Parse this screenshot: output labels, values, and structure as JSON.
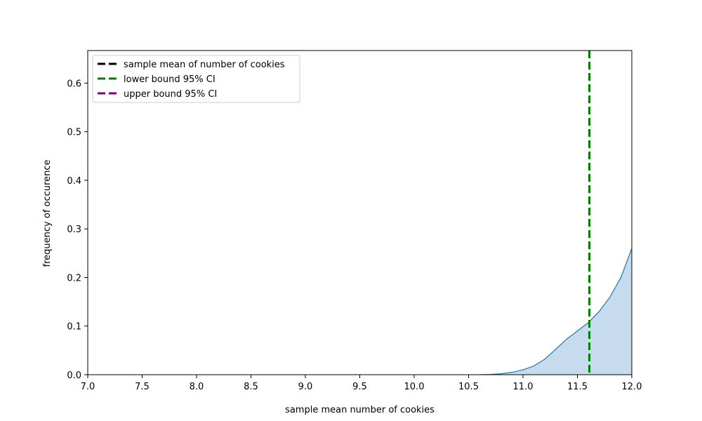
{
  "chart_data": {
    "type": "area",
    "title": "",
    "xlabel": "sample mean number of cookies",
    "ylabel": "frequency of occurence",
    "xlim": [
      7.0,
      12.0
    ],
    "ylim": [
      0.0,
      0.667
    ],
    "x_ticks": [
      "7.0",
      "7.5",
      "8.0",
      "8.5",
      "9.0",
      "9.5",
      "10.0",
      "10.5",
      "11.0",
      "11.5",
      "12.0"
    ],
    "y_ticks": [
      "0.0",
      "0.1",
      "0.2",
      "0.3",
      "0.4",
      "0.5",
      "0.6"
    ],
    "grid": false,
    "legend_position": "top-left",
    "series": [
      {
        "kind": "density",
        "color": "#1f77b4",
        "fill": "#c6dbed",
        "x": [
          10.6,
          10.7,
          10.8,
          10.9,
          11.0,
          11.1,
          11.2,
          11.3,
          11.4,
          11.5,
          11.6,
          11.7,
          11.8,
          11.9,
          12.0
        ],
        "y": [
          0.0,
          0.0005,
          0.002,
          0.005,
          0.01,
          0.018,
          0.032,
          0.052,
          0.073,
          0.09,
          0.107,
          0.13,
          0.16,
          0.2,
          0.26
        ]
      }
    ],
    "vlines": [
      {
        "name": "sample mean of number of cookies",
        "x": null,
        "color": "#000000",
        "style": "dashed"
      },
      {
        "name": "lower bound 95% CI",
        "x": 11.61,
        "color": "#008000",
        "style": "dashed"
      },
      {
        "name": "upper bound 95% CI",
        "x": null,
        "color": "#800080",
        "style": "dashed"
      }
    ]
  }
}
